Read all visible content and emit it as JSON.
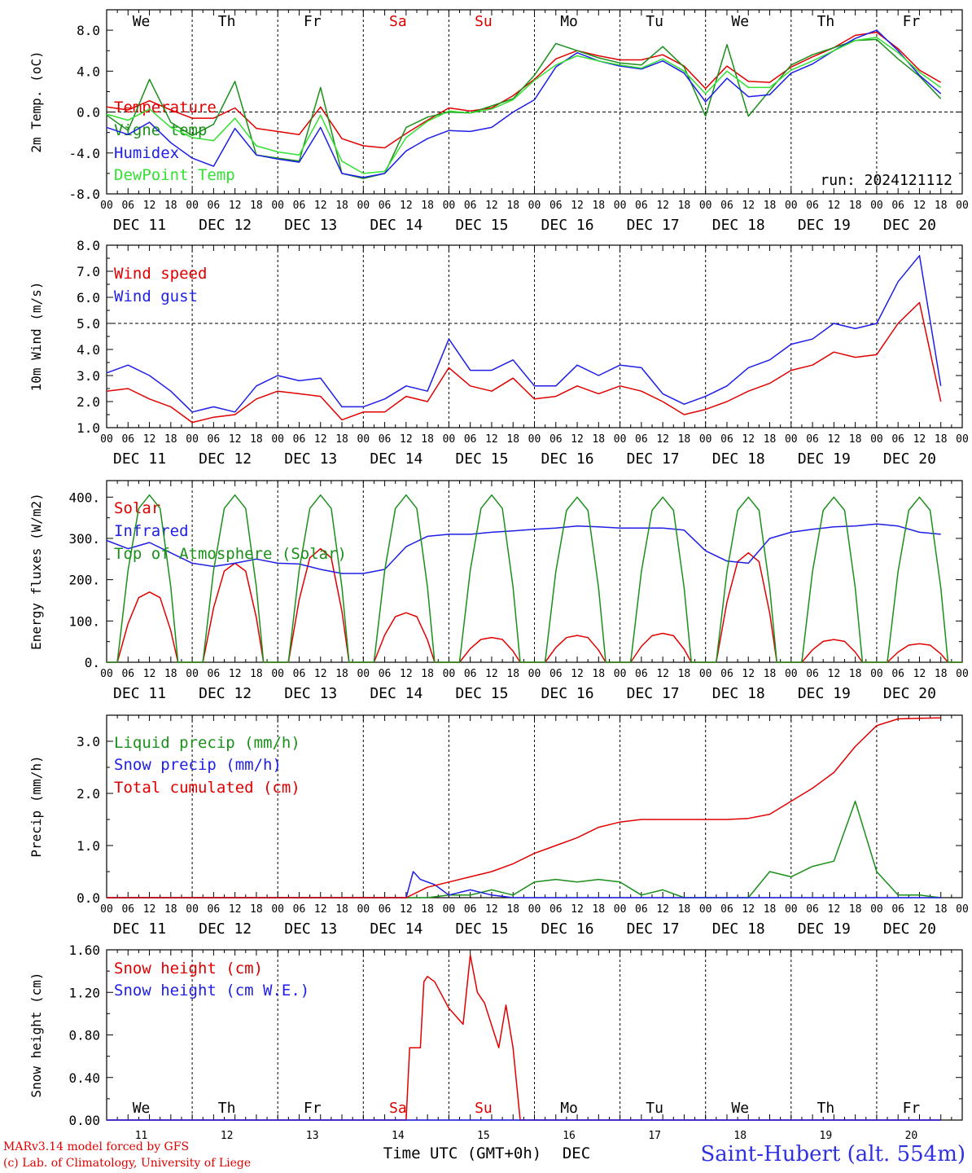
{
  "colors": {
    "red": "#e00000",
    "green": "#1a8f1a",
    "blue": "#1e1ee6",
    "lightgreen": "#33e033",
    "text": "#000000",
    "station": "#3030e0"
  },
  "x_axis": {
    "hour_labels": [
      "00",
      "06",
      "12",
      "18"
    ],
    "final_label": "00",
    "date_labels": [
      "DEC 11",
      "DEC 12",
      "DEC 13",
      "DEC 14",
      "DEC 15",
      "DEC 16",
      "DEC 17",
      "DEC 18",
      "DEC 19",
      "DEC 20"
    ],
    "day_abbrev": [
      "We",
      "Th",
      "Fr",
      "Sa",
      "Su",
      "Mo",
      "Tu",
      "We",
      "Th",
      "Fr"
    ],
    "day_colors": [
      "#000000",
      "#000000",
      "#000000",
      "#e00000",
      "#e00000",
      "#000000",
      "#000000",
      "#000000",
      "#000000",
      "#000000"
    ],
    "day_numbers": [
      "11",
      "12",
      "13",
      "14",
      "15",
      "16",
      "17",
      "18",
      "19",
      "20"
    ],
    "bottom_label": "Time UTC (GMT+0h)",
    "month_label": "DEC"
  },
  "footer": {
    "credit_line1": "MARv3.14 model forced by GFS",
    "credit_line2": "(c) Lab. of Climatology, University of Liege",
    "station": "Saint-Hubert (alt. 554m)"
  },
  "chart_data": [
    {
      "type": "line",
      "ylabel": "2m Temp. (oC)",
      "ylim": [
        -8,
        10
      ],
      "yticks": [
        -8,
        -4,
        0,
        4,
        8
      ],
      "ytick_labels": [
        "-8.0",
        "-4.0",
        "0.0",
        "4.0",
        "8.0"
      ],
      "zero_line": 0,
      "annotation": "run: 2024121112",
      "x_units": "hours since DEC 11 00 UTC",
      "series": [
        {
          "name": "Temperature",
          "color": "#e00000",
          "x": [
            0,
            6,
            12,
            18,
            24,
            30,
            36,
            42,
            48,
            54,
            60,
            66,
            72,
            78,
            84,
            90,
            96,
            102,
            108,
            114,
            120,
            126,
            132,
            138,
            144,
            150,
            156,
            162,
            168,
            174,
            180,
            186,
            192,
            198,
            204,
            210,
            216,
            222,
            228,
            234
          ],
          "y": [
            0.5,
            0.2,
            1.1,
            0.2,
            -0.6,
            -0.6,
            0.4,
            -1.6,
            -1.9,
            -2.2,
            0.5,
            -2.6,
            -3.3,
            -3.5,
            -2.1,
            -0.8,
            0.4,
            0.1,
            0.4,
            1.6,
            3.2,
            5.2,
            6.0,
            5.5,
            5.1,
            5.1,
            5.6,
            4.5,
            2.3,
            4.5,
            3.0,
            2.9,
            4.4,
            5.4,
            6.3,
            7.5,
            7.8,
            6.2,
            4.1,
            2.9
          ]
        },
        {
          "name": "Vigne temp",
          "color": "#1a8f1a",
          "x": [
            0,
            6,
            12,
            18,
            24,
            30,
            36,
            42,
            48,
            54,
            60,
            66,
            72,
            78,
            84,
            90,
            96,
            102,
            108,
            114,
            120,
            126,
            132,
            138,
            144,
            150,
            156,
            162,
            168,
            174,
            180,
            186,
            192,
            198,
            204,
            210,
            216,
            222,
            228,
            234
          ],
          "y": [
            -0.3,
            -1.8,
            3.2,
            -1.0,
            -2.3,
            -1.2,
            3.0,
            -4.2,
            -4.5,
            -4.8,
            2.4,
            -6.0,
            -6.5,
            -6.0,
            -1.5,
            -0.5,
            0.0,
            -0.1,
            0.6,
            1.3,
            3.6,
            6.7,
            6.0,
            5.3,
            4.8,
            4.6,
            6.4,
            4.4,
            -0.4,
            6.6,
            -0.4,
            2.1,
            4.6,
            5.6,
            6.3,
            7.0,
            7.1,
            5.2,
            3.5,
            1.3
          ]
        },
        {
          "name": "Humidex",
          "color": "#1e1ee6",
          "x": [
            0,
            6,
            12,
            18,
            24,
            30,
            36,
            42,
            48,
            54,
            60,
            66,
            72,
            78,
            84,
            90,
            96,
            102,
            108,
            114,
            120,
            126,
            132,
            138,
            144,
            150,
            156,
            162,
            168,
            174,
            180,
            186,
            192,
            198,
            204,
            210,
            216,
            222,
            228,
            234
          ],
          "y": [
            -1.5,
            -2.2,
            -1.0,
            -3.0,
            -4.5,
            -5.3,
            -1.6,
            -4.2,
            -4.6,
            -4.9,
            -1.5,
            -6.0,
            -6.4,
            -6.0,
            -3.8,
            -2.6,
            -1.8,
            -1.9,
            -1.5,
            0.0,
            1.2,
            4.4,
            5.8,
            5.0,
            4.5,
            4.2,
            5.0,
            3.8,
            1.0,
            3.3,
            1.5,
            1.7,
            3.8,
            4.7,
            6.0,
            7.2,
            8.0,
            6.0,
            3.6,
            1.8
          ]
        },
        {
          "name": "DewPoint Temp",
          "color": "#33e033",
          "x": [
            0,
            6,
            12,
            18,
            24,
            30,
            36,
            42,
            48,
            54,
            60,
            66,
            72,
            78,
            84,
            90,
            96,
            102,
            108,
            114,
            120,
            126,
            132,
            138,
            144,
            150,
            156,
            162,
            168,
            174,
            180,
            186,
            192,
            198,
            204,
            210,
            216,
            222,
            228,
            234
          ],
          "y": [
            -0.2,
            -0.8,
            0.3,
            -1.5,
            -2.5,
            -2.8,
            -0.6,
            -3.3,
            -3.9,
            -4.2,
            -0.3,
            -4.8,
            -6.0,
            -5.8,
            -2.5,
            -0.9,
            0.1,
            -0.1,
            0.3,
            1.2,
            3.1,
            4.6,
            5.5,
            5.0,
            4.6,
            4.3,
            5.2,
            4.0,
            1.8,
            4.0,
            2.4,
            2.4,
            4.1,
            5.0,
            6.0,
            7.0,
            7.3,
            5.8,
            3.9,
            2.4
          ]
        }
      ]
    },
    {
      "type": "line",
      "ylabel": "10m Wind (m/s)",
      "ylim": [
        1,
        8
      ],
      "yticks": [
        1,
        2,
        3,
        4,
        5,
        6,
        7,
        8
      ],
      "ytick_labels": [
        "1.0",
        "2.0",
        "3.0",
        "4.0",
        "5.0",
        "6.0",
        "7.0",
        "8.0"
      ],
      "ref_line": 5,
      "x_units": "hours since DEC 11 00 UTC",
      "series": [
        {
          "name": "Wind speed",
          "color": "#e00000",
          "x": [
            0,
            6,
            12,
            18,
            24,
            30,
            36,
            42,
            48,
            54,
            60,
            66,
            72,
            78,
            84,
            90,
            96,
            102,
            108,
            114,
            120,
            126,
            132,
            138,
            144,
            150,
            156,
            162,
            168,
            174,
            180,
            186,
            192,
            198,
            204,
            210,
            216,
            222,
            228,
            234
          ],
          "y": [
            2.4,
            2.5,
            2.1,
            1.8,
            1.2,
            1.4,
            1.5,
            2.1,
            2.4,
            2.3,
            2.2,
            1.3,
            1.6,
            1.6,
            2.2,
            2.0,
            3.3,
            2.6,
            2.4,
            2.9,
            2.1,
            2.2,
            2.6,
            2.3,
            2.6,
            2.4,
            2.0,
            1.5,
            1.7,
            2.0,
            2.4,
            2.7,
            3.2,
            3.4,
            3.9,
            3.7,
            3.8,
            5.0,
            5.8,
            2.0
          ]
        },
        {
          "name": "Wind gust",
          "color": "#1e1ee6",
          "x": [
            0,
            6,
            12,
            18,
            24,
            30,
            36,
            42,
            48,
            54,
            60,
            66,
            72,
            78,
            84,
            90,
            96,
            102,
            108,
            114,
            120,
            126,
            132,
            138,
            144,
            150,
            156,
            162,
            168,
            174,
            180,
            186,
            192,
            198,
            204,
            210,
            216,
            222,
            228,
            234
          ],
          "y": [
            3.1,
            3.4,
            3.0,
            2.4,
            1.6,
            1.8,
            1.6,
            2.6,
            3.0,
            2.8,
            2.9,
            1.8,
            1.8,
            2.1,
            2.6,
            2.4,
            4.4,
            3.2,
            3.2,
            3.6,
            2.6,
            2.6,
            3.4,
            3.0,
            3.4,
            3.3,
            2.3,
            1.9,
            2.2,
            2.6,
            3.3,
            3.6,
            4.2,
            4.4,
            5.0,
            4.8,
            5.0,
            6.6,
            7.6,
            2.6
          ]
        }
      ]
    },
    {
      "type": "line",
      "ylabel": "Energy fluxes (W/m2)",
      "ylim": [
        0,
        440
      ],
      "yticks": [
        0,
        100,
        200,
        300,
        400
      ],
      "ytick_labels": [
        "0.",
        "100.",
        "200.",
        "300.",
        "400."
      ],
      "x_units": "hours since DEC 11 00 UTC",
      "series": [
        {
          "name": "Solar",
          "color": "#e00000",
          "daily_peaks": [
            170,
            240,
            275,
            120,
            60,
            65,
            70,
            265,
            55,
            45
          ],
          "peak_hour": 12
        },
        {
          "name": "Infrared",
          "color": "#1e1ee6",
          "x": [
            0,
            6,
            12,
            18,
            24,
            30,
            36,
            42,
            48,
            54,
            60,
            66,
            72,
            78,
            84,
            90,
            96,
            102,
            108,
            114,
            120,
            126,
            132,
            138,
            144,
            150,
            156,
            162,
            168,
            174,
            180,
            186,
            192,
            198,
            204,
            210,
            216,
            222,
            228,
            234
          ],
          "y": [
            295,
            275,
            290,
            265,
            240,
            232,
            240,
            250,
            240,
            238,
            225,
            215,
            215,
            225,
            280,
            305,
            310,
            310,
            315,
            318,
            322,
            325,
            330,
            328,
            325,
            325,
            325,
            320,
            270,
            245,
            240,
            300,
            315,
            322,
            328,
            330,
            335,
            330,
            315,
            310
          ]
        },
        {
          "name": "Top of Atmosphere (Solar)",
          "color": "#1a8f1a",
          "daily_peaks": [
            405,
            405,
            405,
            405,
            405,
            400,
            400,
            400,
            400,
            400
          ],
          "peak_hour": 12
        }
      ]
    },
    {
      "type": "line",
      "ylabel": "Precip (mm/h)",
      "ylim": [
        0,
        3.5
      ],
      "yticks": [
        0,
        1,
        2,
        3
      ],
      "ytick_labels": [
        "0.0",
        "1.0",
        "2.0",
        "3.0"
      ],
      "x_units": "hours since DEC 11 00 UTC",
      "series": [
        {
          "name": "Liquid precip (mm/h)",
          "color": "#1a8f1a",
          "x": [
            0,
            84,
            90,
            96,
            102,
            108,
            114,
            120,
            126,
            132,
            138,
            144,
            150,
            156,
            162,
            168,
            180,
            186,
            192,
            198,
            204,
            210,
            216,
            222,
            228,
            234
          ],
          "y": [
            0,
            0,
            0,
            0.05,
            0.05,
            0.15,
            0.05,
            0.3,
            0.35,
            0.3,
            0.35,
            0.3,
            0.05,
            0.15,
            0.0,
            0,
            0,
            0.5,
            0.4,
            0.6,
            0.7,
            1.85,
            0.5,
            0.05,
            0.05,
            0.0
          ]
        },
        {
          "name": "Snow precip (mm/h)",
          "color": "#1e1ee6",
          "x": [
            0,
            84,
            86,
            88,
            92,
            96,
            102,
            108,
            114,
            120,
            234
          ],
          "y": [
            0,
            0,
            0.5,
            0.35,
            0.25,
            0.05,
            0.15,
            0.05,
            0,
            0,
            0
          ]
        },
        {
          "name": "Total cumulated (cm)",
          "color": "#e00000",
          "x": [
            0,
            84,
            90,
            96,
            102,
            108,
            114,
            120,
            126,
            132,
            138,
            144,
            150,
            156,
            162,
            168,
            174,
            180,
            186,
            192,
            198,
            204,
            210,
            216,
            222,
            228,
            234
          ],
          "y": [
            0,
            0,
            0.2,
            0.3,
            0.4,
            0.5,
            0.65,
            0.85,
            1.0,
            1.15,
            1.35,
            1.45,
            1.5,
            1.5,
            1.5,
            1.5,
            1.5,
            1.52,
            1.6,
            1.85,
            2.1,
            2.4,
            2.9,
            3.3,
            3.43,
            3.44,
            3.45
          ]
        }
      ]
    },
    {
      "type": "line",
      "ylabel": "Snow height (cm)",
      "ylim": [
        0,
        1.6
      ],
      "yticks": [
        0,
        0.4,
        0.8,
        1.2,
        1.6
      ],
      "ytick_labels": [
        "0.00",
        "0.40",
        "0.80",
        "1.20",
        "1.60"
      ],
      "x_units": "hours since DEC 11 00 UTC",
      "series": [
        {
          "name": "Snow height (cm)",
          "color": "#e00000",
          "x": [
            0,
            84,
            85,
            88,
            89,
            90,
            92,
            96,
            100,
            102,
            104,
            106,
            110,
            112,
            114,
            116,
            120,
            234
          ],
          "y": [
            0,
            0,
            0.68,
            0.68,
            1.3,
            1.35,
            1.3,
            1.05,
            0.9,
            1.55,
            1.2,
            1.1,
            0.68,
            1.08,
            0.68,
            0,
            0,
            0
          ]
        },
        {
          "name": "Snow height (cm W.E.)",
          "color": "#1e1ee6",
          "x": [
            0,
            234
          ],
          "y": [
            0,
            0
          ]
        }
      ]
    }
  ]
}
